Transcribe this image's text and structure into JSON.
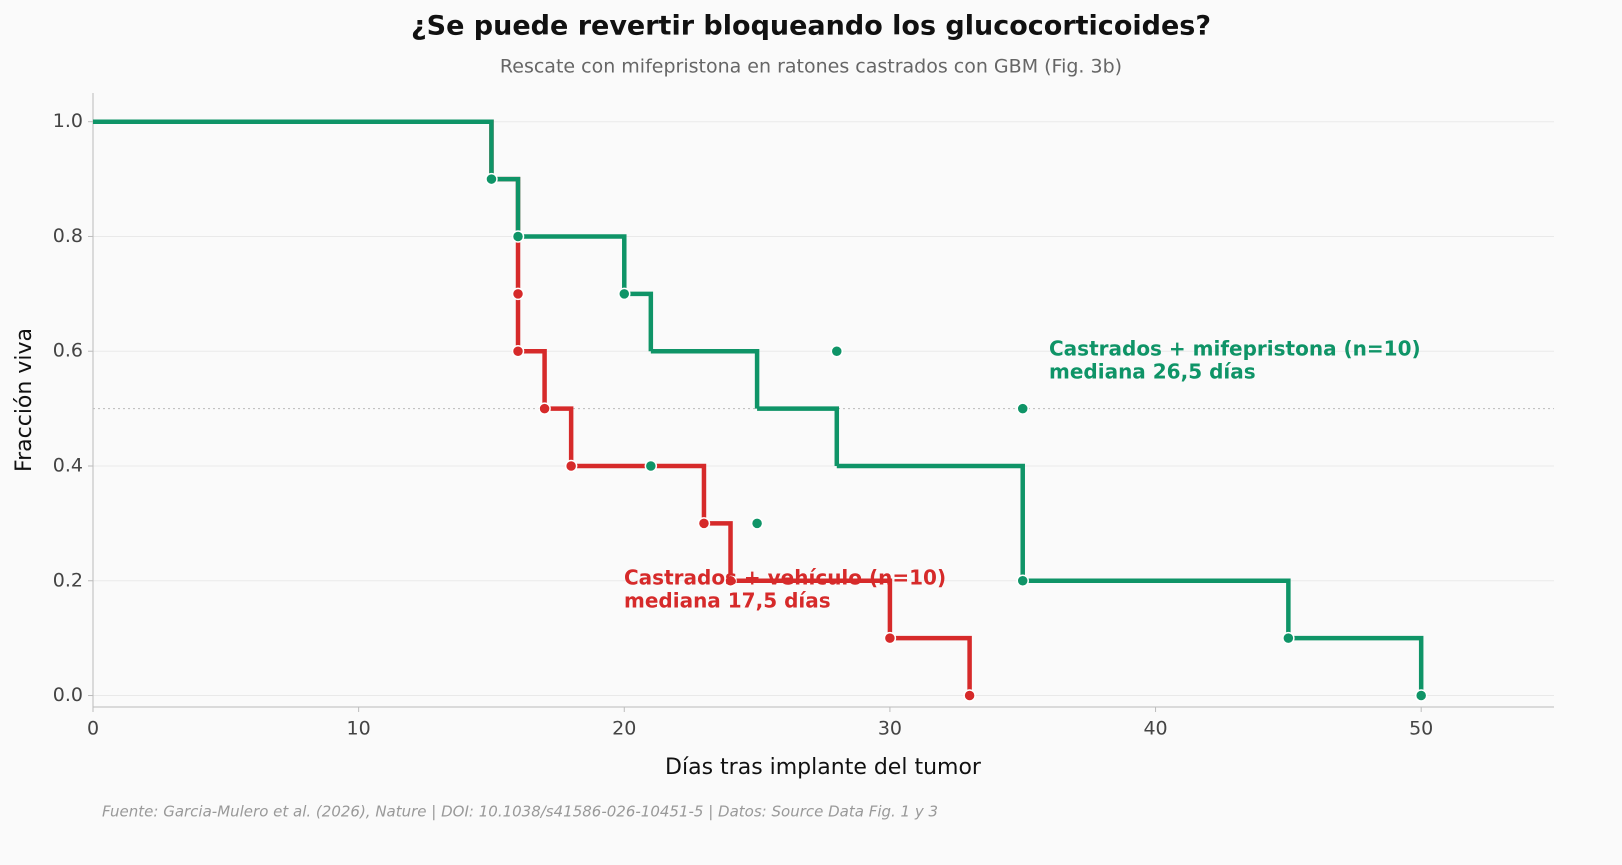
{
  "chart_data": {
    "type": "step",
    "title": "¿Se puede revertir bloqueando los glucocorticoides?",
    "subtitle": "Rescate con mifepristona en ratones castrados con GBM (Fig. 3b)",
    "x_label": "Días tras implante del tumor",
    "y_label": "Fracción viva",
    "footer": "Fuente: Garcia-Mulero et al. (2026), Nature | DOI: 10.1038/s41586-026-10451-5 | Datos: Source Data Fig. 1 y 3",
    "xlim": [
      0,
      55
    ],
    "xticks": [
      0,
      10,
      20,
      30,
      40,
      50
    ],
    "ylim": [
      -0.02,
      1.05
    ],
    "yticks": [
      {
        "value": 0,
        "label": "0.0"
      },
      {
        "value": 0.2,
        "label": "0.2"
      },
      {
        "value": 0.4,
        "label": "0.4"
      },
      {
        "value": 0.6,
        "label": "0.6"
      },
      {
        "value": 0.8,
        "label": "0.8"
      },
      {
        "value": 1,
        "label": "1.0"
      }
    ],
    "grid": true,
    "hline": 0.5,
    "series": [
      {
        "color": "#d62a2a",
        "x": [
          0,
          15,
          16,
          16,
          16,
          17,
          18,
          23,
          24,
          30,
          33
        ],
        "values": [
          1,
          0.9,
          0.8,
          0.7,
          0.6,
          0.5,
          0.4,
          0.3,
          0.2,
          0.1,
          0
        ],
        "markers_x": [
          16,
          16,
          17,
          18,
          23,
          24,
          30,
          33
        ],
        "markers_y": [
          0.7,
          0.6,
          0.5,
          0.4,
          0.3,
          0.2,
          0.1,
          0
        ]
      },
      {
        "color": "#0f9467",
        "x": [
          0,
          15,
          16,
          20,
          21,
          25,
          28,
          35,
          45,
          50
        ],
        "values": [
          1,
          0.9,
          0.8,
          0.7,
          0.6,
          0.5,
          0.4,
          0.2,
          0.1,
          0
        ],
        "markers_x": [
          15,
          16,
          20,
          21,
          25,
          28,
          35,
          35,
          45,
          50
        ],
        "markers_y": [
          0.9,
          0.8,
          0.7,
          0.4,
          0.3,
          0.6,
          0.5,
          0.2,
          0.1,
          0
        ]
      }
    ],
    "annotations": [
      {
        "lines": [
          "Castrados + vehículo (n=10)",
          "mediana 17,5 días"
        ],
        "color": "#d62a2a"
      },
      {
        "lines": [
          "Castrados + mifepristona (n=10)",
          "mediana 26,5 días"
        ],
        "color": "#0f9467"
      }
    ]
  }
}
